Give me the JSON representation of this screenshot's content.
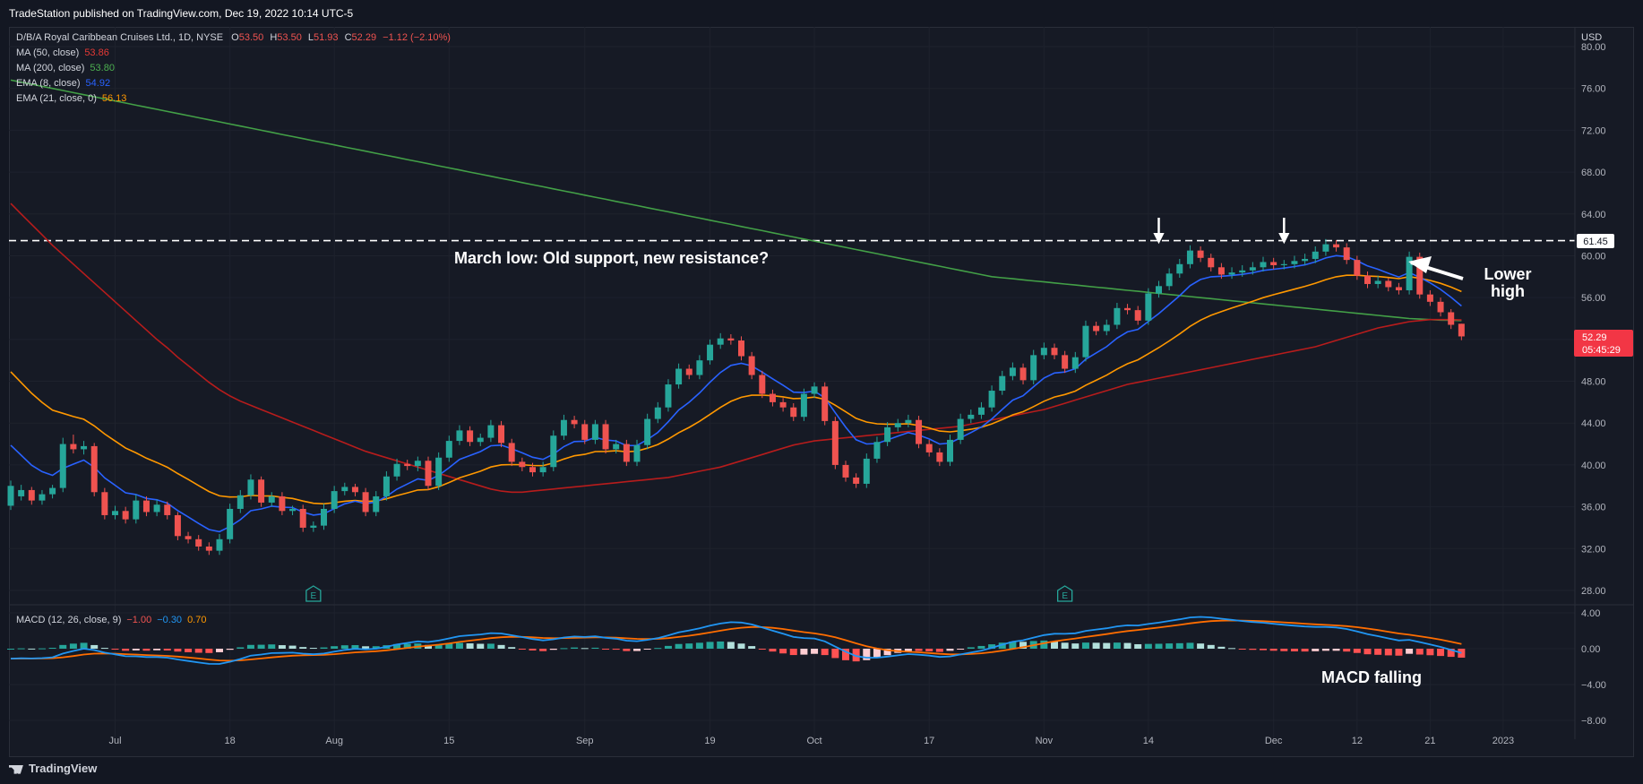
{
  "header": {
    "published_by": "TradeStation published on TradingView.com, Dec 19, 2022 10:14 UTC-5"
  },
  "footer": {
    "brand": "TradingView"
  },
  "legend": {
    "symbol": "D/B/A Royal Caribbean Cruises Ltd., 1D, NYSE",
    "ohlc": [
      {
        "k": "O",
        "v": "53.50"
      },
      {
        "k": "H",
        "v": "53.50"
      },
      {
        "k": "L",
        "v": "51.93"
      },
      {
        "k": "C",
        "v": "52.29"
      },
      {
        "k": "",
        "v": "−1.12 (−2.10%)"
      }
    ],
    "indicators": [
      {
        "name": "MA (50, close)",
        "value": "53.86",
        "color": "#e53935"
      },
      {
        "name": "MA (200, close)",
        "value": "53.80",
        "color": "#4caf50"
      },
      {
        "name": "EMA (8, close)",
        "value": "54.92",
        "color": "#2962ff"
      },
      {
        "name": "EMA (21, close, 0)",
        "value": "56.13",
        "color": "#ff9800"
      }
    ],
    "macd": {
      "name": "MACD (12, 26, close, 9)",
      "values": [
        {
          "v": "−1.00",
          "color": "#ef5350"
        },
        {
          "v": "−0.30",
          "color": "#2196f3"
        },
        {
          "v": "0.70",
          "color": "#ff9800"
        }
      ]
    }
  },
  "annotations": {
    "resistance_text": "March low: Old support, new resistance?",
    "lower_high": [
      "Lower",
      "high"
    ],
    "macd_falling": "MACD falling"
  },
  "price_labels": {
    "currency": "USD",
    "resistance": "61.45",
    "last_price": "52.29",
    "countdown": "05:45:29"
  },
  "colors": {
    "up": "#26a69a",
    "down": "#ef5350",
    "ma50": "#b71c1c",
    "ma200": "#43a047",
    "ema8": "#2962ff",
    "ema21": "#ff9800",
    "macd_line": "#2196f3",
    "signal_line": "#ff6d00",
    "earnings": "#26a69a"
  },
  "chart_data": {
    "type": "candlestick",
    "title": "D/B/A Royal Caribbean Cruises Ltd., 1D, NYSE",
    "price_axis": {
      "min": 26,
      "max": 80,
      "ticks": [
        28,
        32,
        36,
        40,
        44,
        48,
        52,
        56,
        60,
        64,
        68,
        72,
        76,
        80
      ]
    },
    "x_ticks": [
      {
        "i": 10,
        "label": "Jul"
      },
      {
        "i": 21,
        "label": "18"
      },
      {
        "i": 31,
        "label": "Aug"
      },
      {
        "i": 42,
        "label": "15"
      },
      {
        "i": 55,
        "label": "Sep"
      },
      {
        "i": 67,
        "label": "19"
      },
      {
        "i": 77,
        "label": "Oct"
      },
      {
        "i": 88,
        "label": "17"
      },
      {
        "i": 99,
        "label": "Nov"
      },
      {
        "i": 109,
        "label": "14"
      },
      {
        "i": 121,
        "label": "Dec"
      },
      {
        "i": 129,
        "label": "12"
      },
      {
        "i": 136,
        "label": "21"
      },
      {
        "i": 143,
        "label": "2023"
      }
    ],
    "earnings_markers": [
      {
        "i": 29,
        "label": "E"
      },
      {
        "i": 101,
        "label": "E"
      }
    ],
    "resistance_level": 61.45,
    "down_arrows_at": [
      110,
      122
    ],
    "close": [
      38.0,
      37.6,
      36.6,
      37.2,
      37.8,
      42.0,
      41.5,
      41.8,
      37.4,
      35.2,
      35.6,
      34.8,
      36.6,
      35.5,
      36.2,
      35.2,
      33.2,
      32.9,
      32.2,
      31.8,
      32.9,
      35.8,
      37.1,
      38.6,
      36.4,
      37.0,
      35.6,
      35.8,
      34.0,
      34.2,
      35.8,
      37.5,
      37.9,
      37.4,
      35.5,
      37.0,
      38.9,
      40.1,
      39.9,
      40.4,
      38.0,
      40.7,
      42.3,
      43.3,
      42.2,
      42.6,
      43.8,
      42.1,
      40.3,
      39.8,
      39.3,
      39.8,
      42.8,
      44.3,
      43.9,
      42.4,
      43.9,
      41.5,
      42.0,
      40.3,
      41.9,
      44.4,
      45.5,
      47.7,
      49.2,
      48.6,
      50.0,
      51.5,
      52.1,
      51.9,
      50.4,
      48.6,
      46.8,
      46.0,
      45.5,
      44.6,
      46.8,
      47.5,
      44.2,
      40.0,
      38.8,
      38.2,
      40.6,
      42.2,
      43.6,
      44.0,
      44.3,
      42.0,
      41.2,
      40.3,
      42.4,
      44.4,
      44.8,
      45.5,
      47.1,
      48.5,
      49.3,
      48.1,
      50.5,
      51.2,
      50.5,
      49.2,
      50.3,
      53.3,
      52.8,
      53.4,
      55.0,
      54.8,
      53.8,
      56.4,
      57.1,
      58.3,
      59.2,
      60.5,
      59.8,
      58.9,
      58.2,
      58.4,
      58.6,
      58.9,
      59.4,
      59.1,
      59.2,
      59.5,
      59.7,
      60.4,
      61.1,
      60.8,
      59.6,
      58.1,
      57.3,
      57.6,
      57.0,
      56.7,
      59.9,
      56.3,
      55.6,
      54.6,
      53.4,
      52.29
    ],
    "open": [
      36.1,
      37.0,
      37.6,
      36.6,
      37.2,
      37.8,
      42.0,
      41.5,
      41.8,
      37.4,
      35.2,
      35.6,
      34.8,
      36.6,
      35.5,
      36.2,
      35.2,
      33.2,
      32.9,
      32.2,
      31.8,
      32.9,
      35.8,
      37.1,
      38.6,
      36.4,
      37.0,
      35.6,
      35.8,
      34.0,
      34.2,
      35.8,
      37.5,
      37.9,
      37.4,
      35.5,
      37.0,
      38.9,
      40.1,
      39.9,
      40.4,
      38.0,
      40.7,
      42.3,
      43.3,
      42.2,
      42.6,
      43.8,
      42.1,
      40.3,
      39.8,
      39.3,
      39.8,
      42.8,
      44.3,
      43.9,
      42.4,
      43.9,
      41.5,
      42.0,
      40.3,
      41.9,
      44.4,
      45.5,
      47.7,
      49.2,
      48.6,
      50.0,
      51.5,
      52.1,
      51.9,
      50.4,
      48.6,
      46.8,
      46.0,
      45.5,
      44.6,
      46.8,
      47.5,
      44.2,
      40.0,
      38.8,
      38.2,
      40.6,
      42.2,
      43.6,
      44.0,
      44.3,
      42.0,
      41.2,
      40.3,
      42.4,
      44.4,
      44.8,
      45.5,
      47.1,
      48.5,
      49.3,
      48.1,
      50.5,
      51.2,
      50.5,
      49.2,
      50.3,
      53.3,
      52.8,
      53.4,
      55.0,
      54.8,
      53.8,
      56.4,
      57.1,
      58.3,
      59.2,
      60.5,
      59.8,
      58.9,
      58.2,
      58.4,
      58.6,
      58.9,
      59.4,
      59.1,
      59.2,
      59.5,
      59.7,
      60.4,
      61.1,
      60.8,
      59.6,
      58.1,
      57.3,
      57.6,
      57.0,
      56.7,
      59.9,
      56.3,
      55.6,
      54.6,
      53.5
    ],
    "high": [
      38.5,
      38.1,
      37.9,
      37.6,
      38.1,
      42.6,
      42.9,
      42.3,
      42.1,
      37.8,
      36.1,
      36.0,
      37.2,
      37.0,
      36.7,
      36.5,
      35.5,
      33.6,
      33.3,
      32.6,
      33.4,
      36.3,
      37.6,
      39.1,
      38.9,
      37.4,
      37.4,
      36.1,
      36.2,
      34.6,
      36.3,
      38.0,
      38.3,
      38.2,
      37.8,
      37.5,
      39.4,
      40.6,
      40.5,
      40.8,
      40.8,
      41.2,
      42.8,
      43.8,
      43.7,
      43.0,
      44.3,
      44.2,
      42.5,
      40.7,
      40.2,
      40.3,
      43.3,
      44.8,
      44.7,
      44.3,
      44.3,
      44.3,
      42.4,
      42.4,
      42.4,
      44.9,
      46.0,
      48.2,
      49.7,
      49.6,
      50.5,
      52.0,
      52.6,
      52.5,
      52.3,
      50.8,
      49.0,
      47.2,
      46.4,
      45.9,
      47.3,
      47.9,
      47.9,
      44.6,
      40.4,
      39.2,
      41.1,
      42.7,
      44.1,
      44.4,
      44.8,
      44.7,
      42.4,
      41.6,
      42.9,
      44.9,
      45.3,
      46.0,
      47.6,
      49.0,
      49.8,
      49.7,
      51.0,
      51.7,
      51.6,
      50.9,
      50.8,
      53.8,
      53.7,
      53.9,
      55.5,
      55.4,
      55.2,
      56.9,
      57.6,
      58.8,
      59.7,
      61.0,
      60.9,
      60.2,
      59.3,
      58.9,
      59.1,
      59.4,
      59.9,
      59.8,
      59.6,
      60.0,
      60.2,
      60.9,
      61.6,
      61.5,
      61.2,
      60.0,
      58.5,
      58.1,
      57.9,
      57.4,
      60.4,
      60.3,
      56.7,
      56.0,
      54.9,
      53.5
    ],
    "low": [
      35.7,
      36.6,
      36.2,
      36.2,
      36.8,
      37.4,
      41.1,
      41.0,
      37.0,
      34.8,
      34.8,
      34.4,
      34.4,
      35.1,
      35.1,
      34.8,
      32.8,
      32.5,
      31.8,
      31.4,
      31.4,
      32.5,
      35.4,
      36.7,
      36.0,
      36.0,
      35.2,
      35.2,
      33.6,
      33.6,
      33.8,
      35.4,
      37.1,
      37.0,
      35.1,
      35.1,
      36.6,
      38.5,
      39.5,
      39.4,
      37.6,
      37.6,
      40.3,
      41.9,
      41.8,
      41.8,
      42.2,
      41.7,
      39.9,
      39.4,
      38.9,
      38.9,
      39.4,
      42.4,
      43.5,
      42.0,
      42.0,
      41.1,
      41.1,
      39.9,
      39.9,
      41.5,
      44.0,
      45.1,
      47.3,
      48.2,
      48.2,
      49.6,
      51.1,
      51.5,
      50.0,
      48.2,
      46.4,
      45.6,
      45.1,
      44.2,
      44.2,
      46.4,
      43.8,
      39.6,
      38.4,
      37.8,
      37.8,
      40.2,
      41.8,
      43.2,
      43.6,
      41.6,
      40.8,
      39.9,
      39.9,
      42.0,
      44.0,
      44.4,
      45.1,
      46.7,
      48.1,
      47.7,
      47.7,
      50.1,
      50.1,
      48.8,
      48.8,
      49.9,
      52.4,
      52.4,
      53.0,
      54.4,
      53.4,
      53.4,
      56.0,
      56.7,
      57.9,
      58.8,
      59.4,
      58.5,
      57.8,
      57.8,
      58.0,
      58.2,
      58.5,
      58.7,
      58.7,
      58.8,
      59.1,
      59.3,
      60.0,
      60.4,
      59.2,
      57.7,
      56.9,
      56.9,
      56.6,
      56.3,
      56.3,
      55.9,
      55.2,
      54.2,
      53.0,
      51.93
    ],
    "ma50": [
      65.0,
      64.0,
      63.0,
      62.0,
      61.0,
      60.1,
      59.2,
      58.3,
      57.4,
      56.5,
      55.6,
      54.7,
      53.8,
      52.9,
      52.0,
      51.2,
      50.3,
      49.5,
      48.7,
      47.9,
      47.2,
      46.6,
      46.1,
      45.7,
      45.3,
      44.9,
      44.5,
      44.1,
      43.7,
      43.3,
      42.9,
      42.5,
      42.1,
      41.7,
      41.3,
      41.0,
      40.7,
      40.4,
      40.1,
      39.8,
      39.5,
      39.2,
      38.9,
      38.6,
      38.3,
      38.0,
      37.7,
      37.5,
      37.4,
      37.4,
      37.5,
      37.6,
      37.7,
      37.8,
      37.9,
      38.0,
      38.1,
      38.2,
      38.3,
      38.4,
      38.5,
      38.6,
      38.7,
      38.8,
      39.0,
      39.2,
      39.4,
      39.6,
      39.8,
      40.1,
      40.4,
      40.7,
      41.0,
      41.3,
      41.6,
      41.9,
      42.1,
      42.3,
      42.4,
      42.5,
      42.6,
      42.7,
      42.8,
      42.9,
      43.0,
      43.1,
      43.2,
      43.3,
      43.4,
      43.5,
      43.6,
      43.7,
      43.9,
      44.1,
      44.3,
      44.5,
      44.7,
      44.9,
      45.1,
      45.3,
      45.6,
      45.9,
      46.2,
      46.5,
      46.8,
      47.1,
      47.4,
      47.7,
      47.9,
      48.1,
      48.3,
      48.5,
      48.7,
      48.9,
      49.1,
      49.3,
      49.5,
      49.7,
      49.9,
      50.1,
      50.3,
      50.5,
      50.7,
      50.9,
      51.1,
      51.3,
      51.6,
      51.9,
      52.2,
      52.5,
      52.8,
      53.1,
      53.3,
      53.5,
      53.7,
      53.8,
      53.9,
      53.9,
      53.9,
      53.86
    ],
    "ma200": [
      76.8,
      76.6,
      76.4,
      76.2,
      76.0,
      75.8,
      75.6,
      75.4,
      75.2,
      75.0,
      74.8,
      74.6,
      74.4,
      74.2,
      74.0,
      73.8,
      73.6,
      73.4,
      73.2,
      73.0,
      72.8,
      72.6,
      72.4,
      72.2,
      72.0,
      71.8,
      71.6,
      71.4,
      71.2,
      71.0,
      70.8,
      70.6,
      70.4,
      70.2,
      70.0,
      69.8,
      69.6,
      69.4,
      69.2,
      69.0,
      68.8,
      68.6,
      68.4,
      68.2,
      68.0,
      67.8,
      67.6,
      67.4,
      67.2,
      67.0,
      66.8,
      66.6,
      66.4,
      66.2,
      66.0,
      65.8,
      65.6,
      65.4,
      65.2,
      65.0,
      64.8,
      64.6,
      64.4,
      64.2,
      64.0,
      63.8,
      63.6,
      63.4,
      63.2,
      63.0,
      62.8,
      62.6,
      62.4,
      62.2,
      62.0,
      61.8,
      61.6,
      61.4,
      61.2,
      61.0,
      60.8,
      60.6,
      60.4,
      60.2,
      60.0,
      59.8,
      59.6,
      59.4,
      59.2,
      59.0,
      58.8,
      58.6,
      58.4,
      58.2,
      58.0,
      57.9,
      57.8,
      57.7,
      57.6,
      57.5,
      57.4,
      57.3,
      57.2,
      57.1,
      57.0,
      56.9,
      56.8,
      56.7,
      56.6,
      56.5,
      56.4,
      56.3,
      56.2,
      56.1,
      56.0,
      55.9,
      55.8,
      55.7,
      55.6,
      55.5,
      55.4,
      55.3,
      55.2,
      55.1,
      55.0,
      54.9,
      54.8,
      54.7,
      54.6,
      54.5,
      54.4,
      54.3,
      54.2,
      54.1,
      54.0,
      53.95,
      53.9,
      53.85,
      53.83,
      53.8
    ]
  }
}
